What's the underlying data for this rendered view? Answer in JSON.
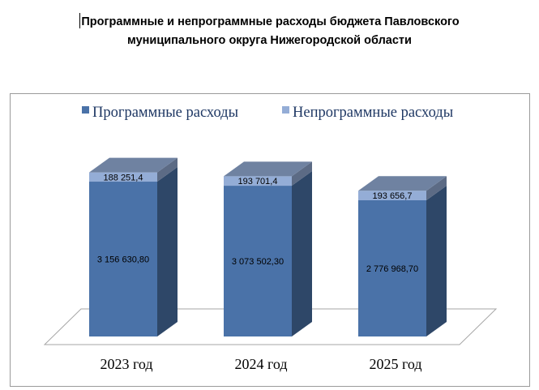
{
  "title_line1": "Программные и непрограммные расходы бюджета  Павловского",
  "title_line2": "муниципального  округа Нижегородской области",
  "chart_data": {
    "type": "bar",
    "stacked": true,
    "three_d": true,
    "title": "Программные и непрограммные расходы бюджета  Павловского муниципального  округа Нижегородской области",
    "categories": [
      "2023 год",
      "2024 год",
      "2025 год"
    ],
    "series": [
      {
        "name": "Программные расходы",
        "values": [
          3156630.8,
          3073502.3,
          2776968.7
        ],
        "labels": [
          "3 156 630,80",
          "3 073 502,30",
          "2 776 968,70"
        ],
        "color": "#4a72a8"
      },
      {
        "name": "Непрограммные расходы",
        "values": [
          188251.4,
          193701.4,
          193656.7
        ],
        "labels": [
          "188 251,4",
          "193 701,4",
          "193 656,7"
        ],
        "color": "#94add6"
      }
    ],
    "legend_position": "top",
    "grid": false
  }
}
